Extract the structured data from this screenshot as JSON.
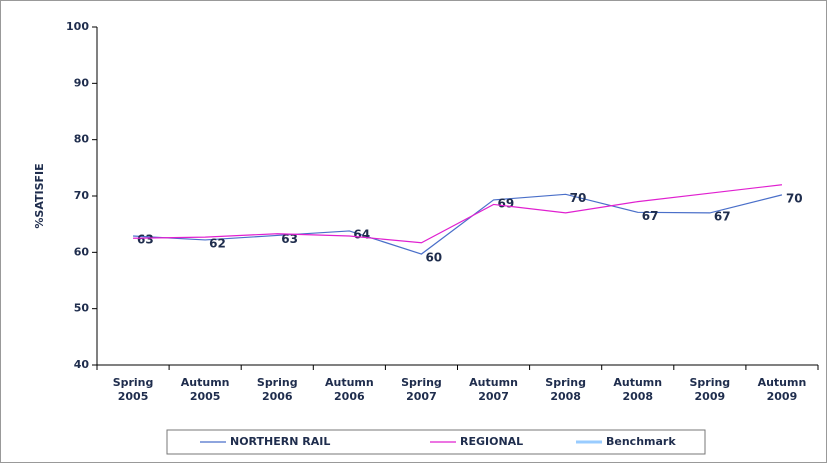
{
  "chart_data": {
    "type": "line",
    "y_label": "%SATISFIE",
    "categories": [
      "Spring 2005",
      "Autumn 2005",
      "Spring 2006",
      "Autumn 2006",
      "Spring 2007",
      "Autumn 2007",
      "Spring 2008",
      "Autumn 2008",
      "Spring 2009",
      "Autumn 2009"
    ],
    "series": [
      {
        "name": "NORTHERN RAIL",
        "color": "#4a6fc9",
        "values": [
          62.9,
          62.2,
          63.0,
          63.8,
          59.7,
          69.3,
          70.3,
          67.1,
          67.0,
          70.2
        ],
        "value_labels": [
          "63",
          "62",
          "63",
          "64",
          "60",
          "69",
          "70",
          "67",
          "67",
          "70"
        ]
      },
      {
        "name": "REGIONAL",
        "color": "#e020d0",
        "values": [
          62.5,
          62.7,
          63.3,
          62.9,
          61.7,
          68.5,
          67.0,
          69.0,
          70.5,
          72.0
        ]
      },
      {
        "name": "Benchmark",
        "color": "#99ccff",
        "values": [
          null,
          null,
          null,
          null,
          null,
          null,
          null,
          null,
          null,
          null
        ]
      }
    ],
    "ylim": [
      40,
      100
    ],
    "yticks": [
      40,
      50,
      60,
      70,
      80,
      90,
      100
    ],
    "grid": false,
    "legend": "bottom"
  }
}
